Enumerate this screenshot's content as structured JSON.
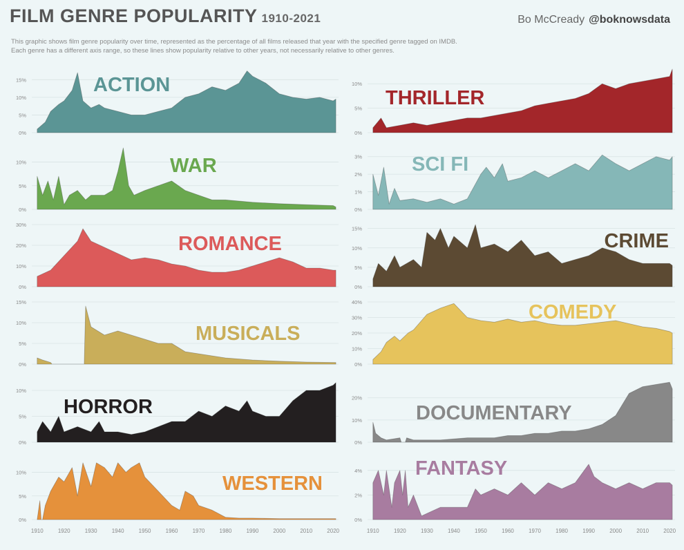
{
  "header": {
    "title": "FILM GENRE POPULARITY",
    "year_range": "1910-2021",
    "author": "Bo McCready",
    "handle": "@boknowsdata",
    "description_1": "This graphic shows film genre popularity over time, represented as the percentage of all films released that year with the specified genre tagged on IMDB.",
    "description_2": "Each genre has a different axis range, so these lines show popularity relative to other years, not necessarily relative to other genres."
  },
  "x_axis": {
    "ticks": [
      1910,
      1920,
      1930,
      1940,
      1950,
      1960,
      1970,
      1980,
      1990,
      2000,
      2010,
      2020
    ],
    "range": [
      1908,
      2022
    ]
  },
  "chart_data": [
    {
      "type": "area",
      "title": "ACTION",
      "color": "#5b9595",
      "ylim": [
        0,
        18
      ],
      "yticks": [
        0,
        5,
        10,
        15
      ],
      "ytick_labels": [
        "0%",
        "5%",
        "10%",
        "15%"
      ],
      "x": [
        1910,
        1913,
        1915,
        1918,
        1920,
        1923,
        1925,
        1927,
        1930,
        1933,
        1935,
        1940,
        1945,
        1950,
        1955,
        1960,
        1965,
        1970,
        1975,
        1980,
        1985,
        1988,
        1990,
        1995,
        2000,
        2005,
        2010,
        2015,
        2020,
        2021
      ],
      "values": [
        1,
        3,
        6,
        8,
        9,
        12,
        17,
        9,
        7,
        8,
        7,
        6,
        5,
        5,
        6,
        7,
        10,
        11,
        13,
        12,
        14,
        17.5,
        16,
        14,
        11,
        10,
        9.5,
        10,
        9,
        9.5
      ]
    },
    {
      "type": "area",
      "title": "THRILLER",
      "color": "#a3262a",
      "ylim": [
        0,
        13
      ],
      "yticks": [
        0,
        5,
        10
      ],
      "ytick_labels": [
        "0%",
        "5%",
        "10%"
      ],
      "x": [
        1910,
        1913,
        1915,
        1920,
        1925,
        1930,
        1935,
        1940,
        1945,
        1950,
        1955,
        1960,
        1965,
        1970,
        1975,
        1980,
        1985,
        1990,
        1995,
        2000,
        2005,
        2010,
        2015,
        2020,
        2021
      ],
      "values": [
        1,
        3,
        1,
        1.5,
        2,
        1.5,
        2,
        2.5,
        3,
        3,
        3.5,
        4,
        4.5,
        5.5,
        6,
        6.5,
        7,
        8,
        10,
        9,
        10,
        10.5,
        11,
        11.5,
        13
      ]
    },
    {
      "type": "area",
      "title": "WAR",
      "color": "#6aa84f",
      "ylim": [
        0,
        13
      ],
      "yticks": [
        0,
        5,
        10
      ],
      "ytick_labels": [
        "0%",
        "5%",
        "10%"
      ],
      "x": [
        1910,
        1912,
        1914,
        1916,
        1918,
        1920,
        1922,
        1925,
        1928,
        1930,
        1935,
        1938,
        1940,
        1942,
        1944,
        1946,
        1950,
        1955,
        1960,
        1965,
        1970,
        1975,
        1980,
        1990,
        2000,
        2010,
        2020,
        2021
      ],
      "values": [
        7,
        3,
        6,
        2,
        7,
        1,
        3,
        4,
        2,
        3,
        3,
        4,
        8,
        13,
        5,
        3,
        4,
        5,
        6,
        4,
        3,
        2,
        2,
        1.5,
        1.2,
        1,
        0.8,
        0.5
      ]
    },
    {
      "type": "area",
      "title": "SCI FI",
      "color": "#85b7b7",
      "ylim": [
        0,
        3.5
      ],
      "yticks": [
        0,
        1,
        2,
        3
      ],
      "ytick_labels": [
        "0%",
        "1%",
        "2%",
        "3%"
      ],
      "x": [
        1910,
        1912,
        1914,
        1916,
        1918,
        1920,
        1925,
        1930,
        1935,
        1940,
        1945,
        1950,
        1952,
        1955,
        1958,
        1960,
        1965,
        1970,
        1975,
        1980,
        1985,
        1990,
        1995,
        2000,
        2005,
        2010,
        2015,
        2020,
        2021
      ],
      "values": [
        2,
        0.8,
        2.4,
        0.3,
        1.2,
        0.5,
        0.6,
        0.4,
        0.6,
        0.3,
        0.6,
        2,
        2.4,
        1.8,
        2.6,
        1.6,
        1.8,
        2.2,
        1.8,
        2.2,
        2.6,
        2.2,
        3.1,
        2.6,
        2.2,
        2.6,
        3,
        2.8,
        3
      ]
    },
    {
      "type": "area",
      "title": "ROMANCE",
      "color": "#dc5a5a",
      "ylim": [
        0,
        30
      ],
      "yticks": [
        0,
        10,
        20,
        30
      ],
      "ytick_labels": [
        "0%",
        "10%",
        "20%",
        "30%"
      ],
      "x": [
        1910,
        1915,
        1920,
        1925,
        1927,
        1930,
        1935,
        1940,
        1945,
        1950,
        1955,
        1960,
        1965,
        1970,
        1975,
        1980,
        1985,
        1990,
        1995,
        2000,
        2005,
        2010,
        2015,
        2020,
        2021
      ],
      "values": [
        5,
        8,
        15,
        22,
        28,
        22,
        19,
        16,
        13,
        14,
        13,
        11,
        10,
        8,
        7,
        7,
        8,
        10,
        12,
        14,
        12,
        9,
        9,
        8,
        8
      ]
    },
    {
      "type": "area",
      "title": "CRIME",
      "color": "#5c4a33",
      "ylim": [
        0,
        16
      ],
      "yticks": [
        0,
        5,
        10,
        15
      ],
      "ytick_labels": [
        "0%",
        "5%",
        "10%",
        "15%"
      ],
      "x": [
        1910,
        1912,
        1915,
        1918,
        1920,
        1925,
        1928,
        1930,
        1933,
        1935,
        1938,
        1940,
        1945,
        1948,
        1950,
        1955,
        1960,
        1965,
        1970,
        1975,
        1980,
        1985,
        1990,
        1995,
        2000,
        2005,
        2010,
        2015,
        2020,
        2021
      ],
      "values": [
        2,
        6,
        4,
        8,
        5,
        7,
        5,
        14,
        12,
        15,
        10,
        13,
        10,
        16,
        10,
        11,
        9,
        12,
        8,
        9,
        6,
        7,
        8,
        10,
        9,
        7,
        6,
        6,
        6,
        5.5
      ]
    },
    {
      "type": "area",
      "title": "MUSICALS",
      "color": "#c9ae5a",
      "ylim": [
        0,
        15
      ],
      "yticks": [
        0,
        5,
        10,
        15
      ],
      "ytick_labels": [
        "0%",
        "5%",
        "10%",
        "15%"
      ],
      "x": [
        1910,
        1912,
        1915,
        1915.5,
        1927,
        1927.5,
        1928,
        1930,
        1935,
        1940,
        1945,
        1950,
        1955,
        1960,
        1965,
        1970,
        1975,
        1980,
        1990,
        2000,
        2010,
        2021
      ],
      "values": [
        1.5,
        1,
        0.4,
        0,
        0,
        0,
        14,
        9,
        7,
        8,
        7,
        6,
        5,
        5,
        3,
        2.5,
        2,
        1.5,
        1,
        0.7,
        0.5,
        0.4
      ]
    },
    {
      "type": "area",
      "title": "COMEDY",
      "color": "#e6c35c",
      "ylim": [
        0,
        40
      ],
      "yticks": [
        0,
        10,
        20,
        30,
        40
      ],
      "ytick_labels": [
        "0%",
        "10%",
        "20%",
        "30%",
        "40%"
      ],
      "x": [
        1910,
        1913,
        1915,
        1918,
        1920,
        1923,
        1925,
        1928,
        1930,
        1935,
        1940,
        1945,
        1950,
        1955,
        1960,
        1965,
        1970,
        1975,
        1980,
        1985,
        1990,
        1995,
        2000,
        2005,
        2010,
        2015,
        2020,
        2021
      ],
      "values": [
        3,
        8,
        14,
        18,
        15,
        20,
        22,
        28,
        32,
        36,
        39,
        30,
        28,
        27,
        29,
        27,
        28,
        26,
        25,
        25,
        26,
        27,
        28,
        26,
        24,
        23,
        21,
        20
      ]
    },
    {
      "type": "area",
      "title": "HORROR",
      "color": "#231f20",
      "ylim": [
        0,
        12
      ],
      "yticks": [
        0,
        5,
        10
      ],
      "ytick_labels": [
        "0%",
        "5%",
        "10%"
      ],
      "x": [
        1910,
        1912,
        1915,
        1918,
        1920,
        1925,
        1930,
        1933,
        1935,
        1940,
        1945,
        1950,
        1955,
        1960,
        1965,
        1970,
        1975,
        1980,
        1985,
        1988,
        1990,
        1995,
        2000,
        2005,
        2010,
        2015,
        2020,
        2021
      ],
      "values": [
        2,
        4,
        2,
        5,
        2,
        3,
        2,
        4,
        2,
        2,
        1.5,
        2,
        3,
        4,
        4,
        6,
        5,
        7,
        6,
        8,
        6,
        5,
        5,
        8,
        10,
        10,
        11,
        11.5
      ]
    },
    {
      "type": "area",
      "title": "DOCUMENTARY",
      "color": "#888888",
      "ylim": [
        0,
        28
      ],
      "yticks": [
        0,
        10,
        20
      ],
      "ytick_labels": [
        "0%",
        "10%",
        "20%"
      ],
      "x": [
        1910,
        1911,
        1913,
        1915,
        1920,
        1920.5,
        1922,
        1922.5,
        1925,
        1930,
        1935,
        1940,
        1945,
        1950,
        1955,
        1960,
        1965,
        1970,
        1975,
        1980,
        1985,
        1990,
        1995,
        2000,
        2003,
        2005,
        2010,
        2015,
        2020,
        2021
      ],
      "values": [
        9,
        4,
        2,
        1,
        2,
        0,
        0,
        2,
        1,
        1,
        1,
        1.5,
        2,
        2,
        2,
        3,
        3,
        4,
        4,
        5,
        5,
        6,
        8,
        12,
        18,
        22,
        25,
        26,
        27,
        24
      ]
    },
    {
      "type": "area",
      "title": "WESTERN",
      "color": "#e5913b",
      "ylim": [
        0,
        13
      ],
      "yticks": [
        0,
        5,
        10
      ],
      "ytick_labels": [
        "0%",
        "5%",
        "10%"
      ],
      "x": [
        1910,
        1911,
        1911.5,
        1912,
        1913,
        1915,
        1918,
        1920,
        1923,
        1925,
        1927,
        1930,
        1932,
        1935,
        1938,
        1940,
        1943,
        1945,
        1948,
        1950,
        1955,
        1960,
        1963,
        1965,
        1968,
        1970,
        1975,
        1980,
        1985,
        1990,
        2000,
        2010,
        2021
      ],
      "values": [
        0,
        4,
        0,
        0,
        3,
        6,
        9,
        8,
        11,
        5,
        12,
        7,
        12,
        11,
        9,
        12,
        10,
        11,
        12,
        9,
        6,
        3,
        2,
        6,
        5,
        3,
        2,
        0.5,
        0.3,
        0.3,
        0.2,
        0.2,
        0.2
      ]
    },
    {
      "type": "area",
      "title": "FANTASY",
      "color": "#a87ca0",
      "ylim": [
        0,
        5
      ],
      "yticks": [
        0,
        2,
        4
      ],
      "ytick_labels": [
        "0%",
        "2%",
        "4%"
      ],
      "x": [
        1910,
        1912,
        1914,
        1915,
        1917,
        1918,
        1920,
        1921,
        1922,
        1923,
        1925,
        1928,
        1930,
        1935,
        1940,
        1945,
        1948,
        1950,
        1955,
        1960,
        1965,
        1970,
        1975,
        1980,
        1985,
        1990,
        1992,
        1995,
        2000,
        2005,
        2010,
        2015,
        2020,
        2021
      ],
      "values": [
        3,
        4,
        2,
        4,
        1,
        3,
        4,
        2,
        4,
        1,
        2,
        0.3,
        0.5,
        1,
        1,
        1,
        2.5,
        2,
        2.5,
        2,
        3,
        2,
        3,
        2.5,
        3,
        4.5,
        3.5,
        3,
        2.5,
        3,
        2.5,
        3,
        3,
        2.8
      ]
    }
  ]
}
